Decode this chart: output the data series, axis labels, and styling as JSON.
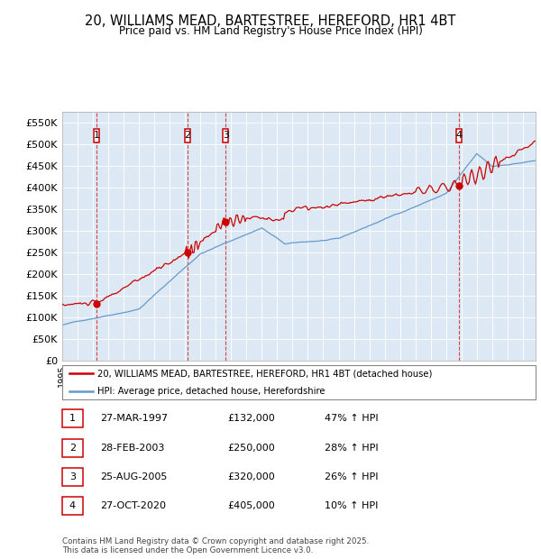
{
  "title": "20, WILLIAMS MEAD, BARTESTREE, HEREFORD, HR1 4BT",
  "subtitle": "Price paid vs. HM Land Registry's House Price Index (HPI)",
  "ylim": [
    0,
    575000
  ],
  "yticks": [
    0,
    50000,
    100000,
    150000,
    200000,
    250000,
    300000,
    350000,
    400000,
    450000,
    500000,
    550000
  ],
  "ytick_labels": [
    "£0",
    "£50K",
    "£100K",
    "£150K",
    "£200K",
    "£250K",
    "£300K",
    "£350K",
    "£400K",
    "£450K",
    "£500K",
    "£550K"
  ],
  "sale_years": [
    1997.23,
    2003.15,
    2005.65,
    2020.82
  ],
  "sale_prices": [
    132000,
    250000,
    320000,
    405000
  ],
  "sale_labels": [
    "1",
    "2",
    "3",
    "4"
  ],
  "sale_pct": [
    "47%",
    "28%",
    "26%",
    "10%"
  ],
  "sale_date_labels": [
    "27-MAR-1997",
    "28-FEB-2003",
    "25-AUG-2005",
    "27-OCT-2020"
  ],
  "sale_price_labels": [
    "£132,000",
    "£250,000",
    "£320,000",
    "£405,000"
  ],
  "red_color": "#cc0000",
  "blue_color": "#6699cc",
  "box_color": "#cc0000",
  "legend_label_red": "20, WILLIAMS MEAD, BARTESTREE, HEREFORD, HR1 4BT (detached house)",
  "legend_label_blue": "HPI: Average price, detached house, Herefordshire",
  "footer": "Contains HM Land Registry data © Crown copyright and database right 2025.\nThis data is licensed under the Open Government Licence v3.0.",
  "plot_bg_color": "#dce9f5",
  "grid_color": "#ffffff",
  "spine_color": "#aaaaaa"
}
